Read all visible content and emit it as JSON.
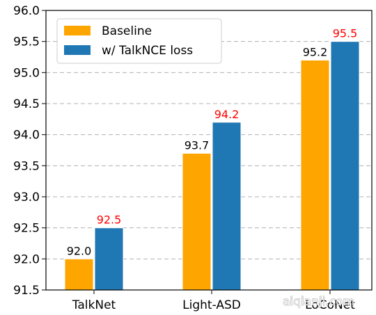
{
  "chart_data": {
    "type": "bar",
    "categories": [
      "TalkNet",
      "Light-ASD",
      "LoCoNet"
    ],
    "series": [
      {
        "name": "Baseline",
        "values": [
          92.0,
          93.7,
          95.2
        ],
        "color": "#FFA500",
        "label_color": "#000000"
      },
      {
        "name": "w/ TalkNCE loss",
        "values": [
          92.5,
          94.2,
          95.5
        ],
        "color": "#1F77B4",
        "label_color": "#FF0000"
      }
    ],
    "ylim": [
      91.5,
      96.0
    ],
    "yticks": [
      "91.5",
      "92.0",
      "92.5",
      "93.0",
      "93.5",
      "94.0",
      "94.5",
      "95.0",
      "95.5",
      "96.0"
    ],
    "data_labels": [
      [
        "92.0",
        "93.7",
        "95.2"
      ],
      [
        "92.5",
        "94.2",
        "95.5"
      ]
    ],
    "grid": "horizontal-dashed",
    "legend_position": "top-left",
    "watermark": "aiqianji.com"
  }
}
